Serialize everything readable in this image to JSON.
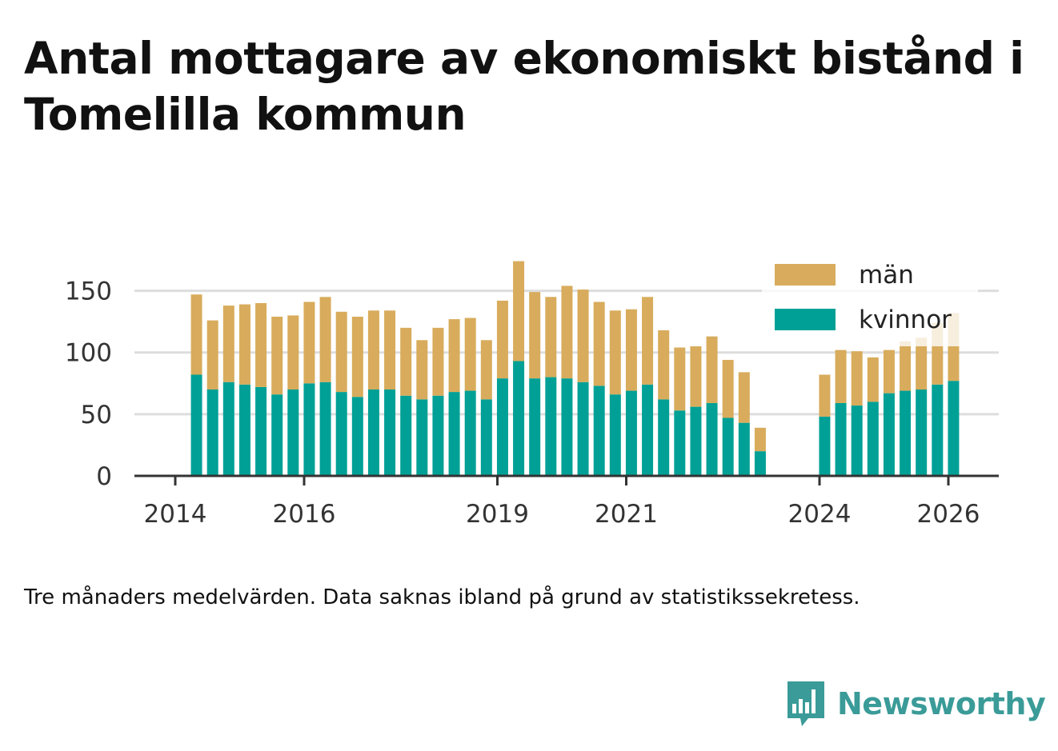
{
  "chart_data": {
    "type": "bar",
    "stacked": true,
    "title": "Antal mottagare av ekonomiskt bistånd i Tomelilla kommun",
    "caption": "Tre månaders medelvärden. Data saknas ibland på grund av statistikssekretess.",
    "brand": "Newsworthy",
    "xlabel": "",
    "ylabel": "",
    "ylim": [
      0,
      175
    ],
    "y_ticks": [
      0,
      50,
      100,
      150
    ],
    "x_ticks": [
      2014,
      2016,
      2019,
      2021,
      2024,
      2026
    ],
    "x_range": [
      2013.4,
      2026.8
    ],
    "legend_position": "top-right",
    "x": [
      2014.33,
      2014.58,
      2014.83,
      2015.08,
      2015.33,
      2015.58,
      2015.83,
      2016.08,
      2016.33,
      2016.58,
      2016.83,
      2017.08,
      2017.33,
      2017.58,
      2017.83,
      2018.08,
      2018.33,
      2018.58,
      2018.83,
      2019.08,
      2019.33,
      2019.58,
      2019.83,
      2020.08,
      2020.33,
      2020.58,
      2020.83,
      2021.08,
      2021.33,
      2021.58,
      2021.83,
      2022.08,
      2022.33,
      2022.58,
      2022.83,
      2023.08,
      2024.08,
      2024.33,
      2024.58,
      2024.83,
      2025.08,
      2025.33,
      2025.58,
      2025.83,
      2026.08
    ],
    "series": [
      {
        "name": "kvinnor",
        "color": "#00a096",
        "values": [
          82,
          70,
          76,
          74,
          72,
          66,
          70,
          75,
          76,
          68,
          64,
          70,
          70,
          65,
          62,
          65,
          68,
          69,
          62,
          79,
          93,
          79,
          80,
          79,
          76,
          73,
          66,
          69,
          74,
          62,
          53,
          56,
          59,
          47,
          43,
          20,
          48,
          59,
          57,
          60,
          67,
          69,
          70,
          74,
          77
        ]
      },
      {
        "name": "män",
        "color": "#d8ac5c",
        "values": [
          65,
          56,
          62,
          65,
          68,
          63,
          60,
          66,
          69,
          65,
          65,
          64,
          64,
          55,
          48,
          55,
          59,
          59,
          48,
          63,
          81,
          70,
          65,
          75,
          75,
          68,
          68,
          66,
          71,
          56,
          51,
          49,
          54,
          47,
          41,
          19,
          34,
          43,
          44,
          36,
          35,
          40,
          42,
          50,
          55
        ]
      }
    ],
    "legend": [
      {
        "label": "män",
        "color": "#d8ac5c"
      },
      {
        "label": "kvinnor",
        "color": "#00a096"
      }
    ]
  }
}
